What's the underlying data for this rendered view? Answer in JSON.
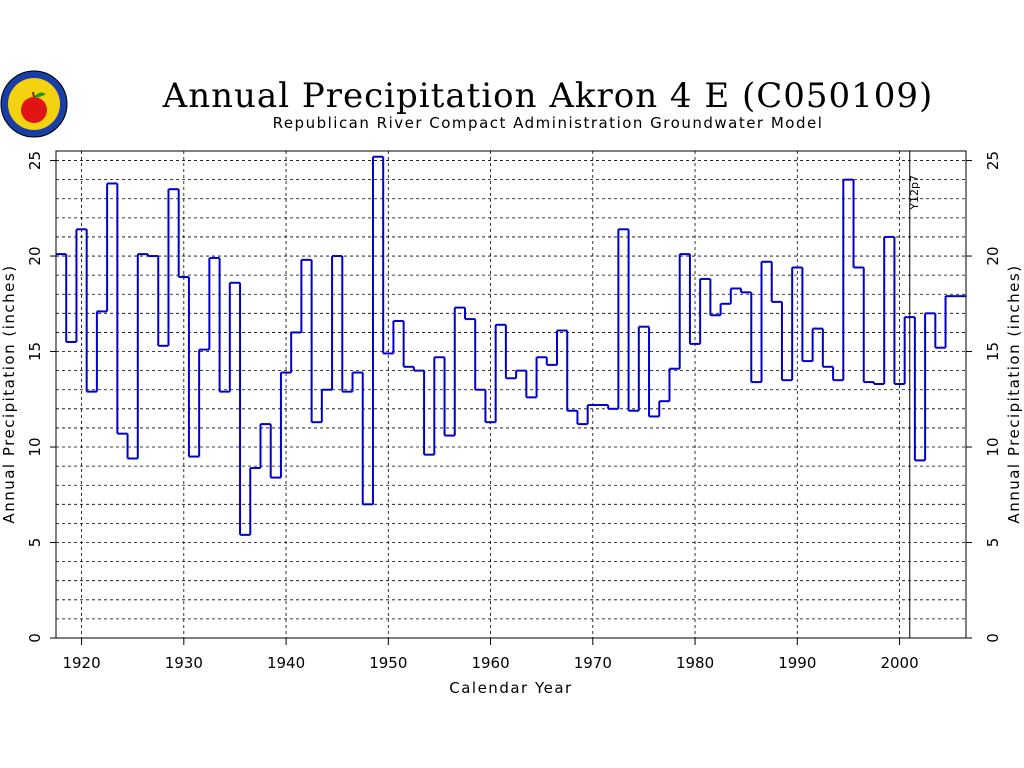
{
  "chart_data": {
    "type": "line",
    "step": true,
    "title": "Annual Precipitation Akron 4 E (C050109)",
    "subtitle": "Republican River Compact Administration Groundwater Model",
    "xlabel": "Calendar Year",
    "ylabel": "Annual Precipitation (inches)",
    "xlim": [
      1917.5,
      2006.5
    ],
    "ylim": [
      0,
      25.5
    ],
    "x_ticks": [
      1920,
      1930,
      1940,
      1950,
      1960,
      1970,
      1980,
      1990,
      2000
    ],
    "y_ticks": [
      0,
      5,
      10,
      15,
      20,
      25
    ],
    "grid": true,
    "series_color": "#0000cc",
    "annotation": {
      "text": "Y12p7",
      "x": 2001
    },
    "series": [
      {
        "x": [
          1918,
          1919,
          1920,
          1921,
          1922,
          1923,
          1924,
          1925,
          1926,
          1927,
          1928,
          1929,
          1930,
          1931,
          1932,
          1933,
          1934,
          1935,
          1936,
          1937,
          1938,
          1939,
          1940,
          1941,
          1942,
          1943,
          1944,
          1945,
          1946,
          1947,
          1948,
          1949,
          1950,
          1951,
          1952,
          1953,
          1954,
          1955,
          1956,
          1957,
          1958,
          1959,
          1960,
          1961,
          1962,
          1963,
          1964,
          1965,
          1966,
          1967,
          1968,
          1969,
          1970,
          1971,
          1972,
          1973,
          1974,
          1975,
          1976,
          1977,
          1978,
          1979,
          1980,
          1981,
          1982,
          1983,
          1984,
          1985,
          1986,
          1987,
          1988,
          1989,
          1990,
          1991,
          1992,
          1993,
          1994,
          1995,
          1996,
          1997,
          1998,
          1999,
          2000,
          2001,
          2002,
          2003,
          2004,
          2005,
          2006
        ],
        "values": [
          20.1,
          15.5,
          21.4,
          12.9,
          17.1,
          23.8,
          10.7,
          9.4,
          20.1,
          20.0,
          15.3,
          23.5,
          18.9,
          9.5,
          15.1,
          19.9,
          12.9,
          18.6,
          5.4,
          8.9,
          11.2,
          8.4,
          13.9,
          16.0,
          19.8,
          11.3,
          13.0,
          20.0,
          12.9,
          13.9,
          7.0,
          25.2,
          14.9,
          16.6,
          14.2,
          14.0,
          9.6,
          14.7,
          10.6,
          17.3,
          16.7,
          13.0,
          11.3,
          16.4,
          13.6,
          14.0,
          12.6,
          14.7,
          14.3,
          16.1,
          11.9,
          11.2,
          12.2,
          12.2,
          12.0,
          21.4,
          11.9,
          16.3,
          11.6,
          12.4,
          14.1,
          20.1,
          15.4,
          18.8,
          16.9,
          17.5,
          18.3,
          18.1,
          13.4,
          19.7,
          17.6,
          13.5,
          19.4,
          14.5,
          16.2,
          14.2,
          13.5,
          24.0,
          19.4,
          13.4,
          13.3,
          21.0,
          13.3,
          16.8,
          9.3,
          17.0,
          15.2,
          17.9,
          17.9
        ]
      }
    ]
  }
}
